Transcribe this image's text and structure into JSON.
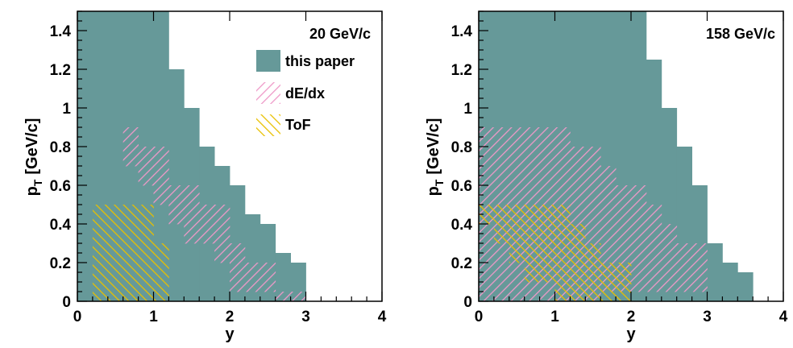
{
  "colors": {
    "fill_this_paper": "#669999",
    "hatch_dedx": "#ee99c8",
    "hatch_tof": "#e8c000",
    "axis": "#000000"
  },
  "chart_data": [
    {
      "type": "area",
      "panel_label": "20 GeV/c",
      "xlabel": "y",
      "ylabel_main": "p",
      "ylabel_sub": "T",
      "ylabel_unit": "[GeV/c]",
      "xlim": [
        0,
        4
      ],
      "ylim": [
        0,
        1.5
      ],
      "xticks": [
        "0",
        "1",
        "2",
        "3",
        "4"
      ],
      "yticks": [
        "0",
        "0.2",
        "0.4",
        "0.6",
        "0.8",
        "1",
        "1.2",
        "1.4"
      ],
      "legend": [
        "this paper",
        "dE/dx",
        "ToF"
      ],
      "legend_position": "top-right",
      "series": [
        {
          "name": "this paper",
          "style": "solid",
          "bins": [
            {
              "x0": 0,
              "x1": 1.2,
              "ymin": 0,
              "ymax": 1.5
            },
            {
              "x0": 1.2,
              "x1": 1.4,
              "ymin": 0,
              "ymax": 1.2
            },
            {
              "x0": 1.4,
              "x1": 1.6,
              "ymin": 0,
              "ymax": 1.0
            },
            {
              "x0": 1.6,
              "x1": 1.8,
              "ymin": 0,
              "ymax": 0.8
            },
            {
              "x0": 1.8,
              "x1": 2.0,
              "ymin": 0,
              "ymax": 0.7
            },
            {
              "x0": 2.0,
              "x1": 2.2,
              "ymin": 0,
              "ymax": 0.6
            },
            {
              "x0": 2.2,
              "x1": 2.4,
              "ymin": 0,
              "ymax": 0.45
            },
            {
              "x0": 2.4,
              "x1": 2.6,
              "ymin": 0,
              "ymax": 0.4
            },
            {
              "x0": 2.6,
              "x1": 2.8,
              "ymin": 0,
              "ymax": 0.25
            },
            {
              "x0": 2.8,
              "x1": 3.0,
              "ymin": 0,
              "ymax": 0.2
            }
          ]
        },
        {
          "name": "dE/dx",
          "style": "hatch-right",
          "bins": [
            {
              "x0": 0.6,
              "x1": 0.8,
              "ymin": 0.7,
              "ymax": 0.9
            },
            {
              "x0": 0.8,
              "x1": 1.0,
              "ymin": 0.6,
              "ymax": 0.8
            },
            {
              "x0": 1.0,
              "x1": 1.2,
              "ymin": 0.5,
              "ymax": 0.8
            },
            {
              "x0": 1.2,
              "x1": 1.4,
              "ymin": 0.4,
              "ymax": 0.6
            },
            {
              "x0": 1.4,
              "x1": 1.6,
              "ymin": 0.3,
              "ymax": 0.6
            },
            {
              "x0": 1.6,
              "x1": 1.8,
              "ymin": 0.3,
              "ymax": 0.5
            },
            {
              "x0": 1.8,
              "x1": 2.0,
              "ymin": 0.2,
              "ymax": 0.5
            },
            {
              "x0": 2.0,
              "x1": 2.2,
              "ymin": 0.05,
              "ymax": 0.3
            },
            {
              "x0": 2.2,
              "x1": 2.4,
              "ymin": 0.05,
              "ymax": 0.2
            },
            {
              "x0": 2.4,
              "x1": 2.6,
              "ymin": 0.05,
              "ymax": 0.2
            },
            {
              "x0": 2.6,
              "x1": 3.0,
              "ymin": 0,
              "ymax": 0.05
            }
          ]
        },
        {
          "name": "ToF",
          "style": "hatch-left",
          "bins": [
            {
              "x0": 0.2,
              "x1": 1.0,
              "ymin": 0,
              "ymax": 0.5
            },
            {
              "x0": 1.0,
              "x1": 1.2,
              "ymin": 0,
              "ymax": 0.3
            }
          ]
        }
      ]
    },
    {
      "type": "area",
      "panel_label": "158 GeV/c",
      "xlabel": "y",
      "ylabel_main": "p",
      "ylabel_sub": "T",
      "ylabel_unit": "[GeV/c]",
      "xlim": [
        0,
        4
      ],
      "ylim": [
        0,
        1.5
      ],
      "xticks": [
        "0",
        "1",
        "2",
        "3",
        "4"
      ],
      "yticks": [
        "0",
        "0.2",
        "0.4",
        "0.6",
        "0.8",
        "1",
        "1.2",
        "1.4"
      ],
      "series": [
        {
          "name": "this paper",
          "style": "solid",
          "bins": [
            {
              "x0": 0,
              "x1": 2.2,
              "ymin": 0,
              "ymax": 1.5
            },
            {
              "x0": 2.2,
              "x1": 2.4,
              "ymin": 0,
              "ymax": 1.25
            },
            {
              "x0": 2.4,
              "x1": 2.6,
              "ymin": 0,
              "ymax": 1.0
            },
            {
              "x0": 2.6,
              "x1": 2.8,
              "ymin": 0,
              "ymax": 0.8
            },
            {
              "x0": 2.8,
              "x1": 3.0,
              "ymin": 0,
              "ymax": 0.6
            },
            {
              "x0": 3.0,
              "x1": 3.2,
              "ymin": 0,
              "ymax": 0.3
            },
            {
              "x0": 3.2,
              "x1": 3.4,
              "ymin": 0,
              "ymax": 0.2
            },
            {
              "x0": 3.4,
              "x1": 3.6,
              "ymin": 0,
              "ymax": 0.15
            }
          ]
        },
        {
          "name": "dE/dx",
          "style": "hatch-right",
          "bins": [
            {
              "x0": 0,
              "x1": 1.2,
              "ymin": 0,
              "ymax": 0.9
            },
            {
              "x0": 1.2,
              "x1": 1.6,
              "ymin": 0,
              "ymax": 0.8
            },
            {
              "x0": 1.6,
              "x1": 1.8,
              "ymin": 0.05,
              "ymax": 0.7
            },
            {
              "x0": 1.8,
              "x1": 2.2,
              "ymin": 0.05,
              "ymax": 0.6
            },
            {
              "x0": 2.2,
              "x1": 2.4,
              "ymin": 0.05,
              "ymax": 0.5
            },
            {
              "x0": 2.4,
              "x1": 2.6,
              "ymin": 0.05,
              "ymax": 0.4
            },
            {
              "x0": 2.6,
              "x1": 2.8,
              "ymin": 0.05,
              "ymax": 0.3
            },
            {
              "x0": 2.8,
              "x1": 3.0,
              "ymin": 0.05,
              "ymax": 0.3
            }
          ]
        },
        {
          "name": "ToF",
          "style": "hatch-left",
          "bins": [
            {
              "x0": 0,
              "x1": 0.2,
              "ymin": 0.4,
              "ymax": 0.5
            },
            {
              "x0": 0.2,
              "x1": 0.4,
              "ymin": 0.3,
              "ymax": 0.5
            },
            {
              "x0": 0.4,
              "x1": 0.6,
              "ymin": 0.2,
              "ymax": 0.5
            },
            {
              "x0": 0.6,
              "x1": 1.0,
              "ymin": 0.1,
              "ymax": 0.5
            },
            {
              "x0": 1.0,
              "x1": 1.2,
              "ymin": 0.0,
              "ymax": 0.5
            },
            {
              "x0": 1.2,
              "x1": 1.4,
              "ymin": 0.0,
              "ymax": 0.4
            },
            {
              "x0": 1.4,
              "x1": 1.6,
              "ymin": 0.0,
              "ymax": 0.3
            },
            {
              "x0": 1.6,
              "x1": 2.0,
              "ymin": 0.0,
              "ymax": 0.2
            }
          ]
        }
      ]
    }
  ]
}
